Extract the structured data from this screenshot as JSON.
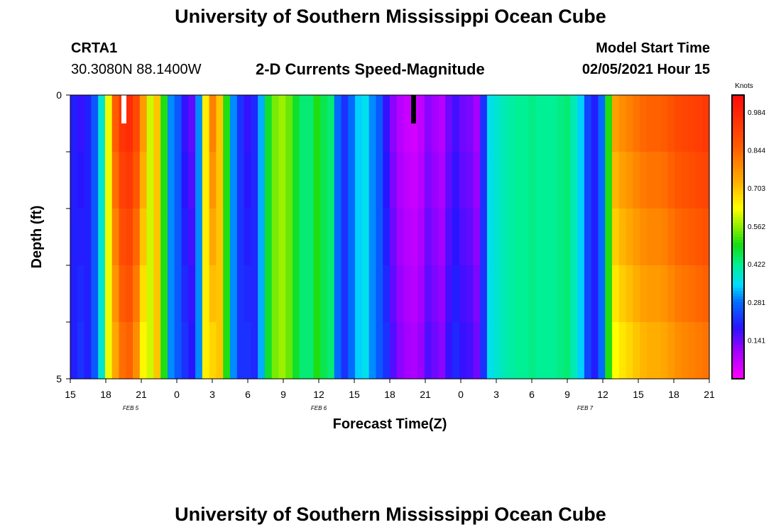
{
  "header": {
    "title": "University of Southern Mississippi Ocean Cube",
    "station": "CRTA1",
    "location": "30.3080N 88.1400W",
    "plot_title": "2-D Currents Speed-Magnitude",
    "model_start_label": "Model Start Time",
    "model_start_value": "02/05/2021 Hour 15"
  },
  "footer": {
    "title": "University of Southern Mississippi Ocean Cube"
  },
  "chart_data": {
    "type": "heatmap",
    "title": "2-D Currents Speed-Magnitude",
    "xlabel": "Forecast Time(Z)",
    "ylabel": "Depth (ft)",
    "colorbar_label": "Knots",
    "x_tick_labels": [
      "15",
      "18",
      "21",
      "0",
      "3",
      "6",
      "9",
      "12",
      "15",
      "18",
      "21",
      "0",
      "3",
      "6",
      "9",
      "12",
      "15",
      "18",
      "21"
    ],
    "date_labels": [
      "FEB 5",
      "FEB 6",
      "FEB 7"
    ],
    "y_tick_labels": [
      "0",
      "5"
    ],
    "ylim": [
      0,
      5
    ],
    "colorbar_ticks": [
      0.141,
      0.281,
      0.422,
      0.562,
      0.703,
      0.844,
      0.984
    ],
    "colorbar_range": [
      0.0,
      1.05
    ],
    "hours": 54,
    "depth_levels": 5,
    "surface_speeds": [
      0.2,
      0.18,
      0.2,
      0.26,
      0.38,
      0.62,
      0.86,
      0.95,
      0.97,
      0.9,
      0.76,
      0.6,
      0.7,
      0.5,
      0.3,
      0.26,
      0.18,
      0.15,
      0.3,
      0.65,
      0.8,
      0.7,
      0.5,
      0.3,
      0.22,
      0.18,
      0.21,
      0.32,
      0.48,
      0.55,
      0.57,
      0.54,
      0.48,
      0.44,
      0.44,
      0.5,
      0.46,
      0.44,
      0.28,
      0.22,
      0.28,
      0.34,
      0.36,
      0.3,
      0.26,
      0.18,
      0.12,
      0.08,
      0.06,
      0.05,
      0.07,
      0.12,
      0.1,
      0.08,
      0.14,
      0.17,
      0.14,
      0.13,
      0.1,
      0.22,
      0.36,
      0.38,
      0.4,
      0.41,
      0.42,
      0.42,
      0.43,
      0.42,
      0.42,
      0.42,
      0.43,
      0.44,
      0.4,
      0.34,
      0.24,
      0.2,
      0.28,
      0.5,
      0.75,
      0.78,
      0.8,
      0.82,
      0.84,
      0.85,
      0.85,
      0.86,
      0.88,
      0.9,
      0.91,
      0.92,
      0.93,
      0.94
    ]
  }
}
